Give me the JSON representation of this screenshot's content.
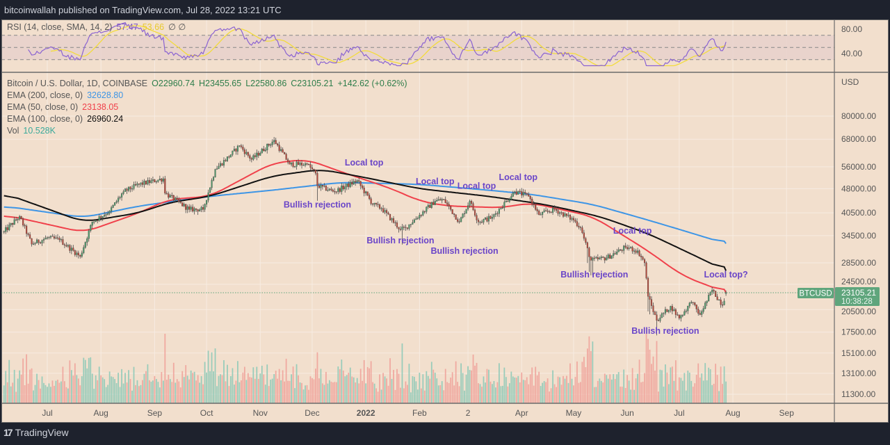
{
  "header": {
    "published": "bitcoinwallah published on TradingView.com, Jul 28, 2022 13:21 UTC"
  },
  "footer": {
    "brand": "TradingView",
    "logo_icon": "tradingview-logo-icon"
  },
  "legend": {
    "rsi": {
      "label": "RSI (14, close, SMA, 14, 2)",
      "value": "57.47",
      "sma_value": "53.66",
      "extra": "∅ ∅"
    },
    "symbol": {
      "label": "Bitcoin / U.S. Dollar, 1D, COINBASE",
      "open": "O22960.74",
      "high": "H23455.65",
      "low": "L22580.86",
      "close": "C23105.21",
      "change": "+142.62 (+0.62%)"
    },
    "ema200": {
      "label": "EMA (200, close, 0)",
      "value": "32628.80"
    },
    "ema50": {
      "label": "EMA (50, close, 0)",
      "value": "23138.05"
    },
    "ema100": {
      "label": "EMA (100, close, 0)",
      "value": "26960.24"
    },
    "vol": {
      "label": "Vol",
      "value": "10.528K"
    }
  },
  "price_axis": {
    "currency": "USD",
    "ticks": [
      "80000.00",
      "68000.00",
      "56000.00",
      "48000.00",
      "40500.00",
      "34500.00",
      "28500.00",
      "24500.00",
      "20500.00",
      "17500.00",
      "15100.00",
      "13100.00",
      "11300.00"
    ]
  },
  "rsi_axis": {
    "ticks": [
      "80.00",
      "40.00"
    ]
  },
  "last_price": {
    "symbol": "BTCUSD",
    "price": "23105.21",
    "countdown": "10:38:28"
  },
  "colors": {
    "bg": "#f2dfcd",
    "up": "#4f9a6c",
    "down": "#b8493c",
    "ema200": "#3d95e6",
    "ema50": "#f0414b",
    "ema100": "#111111",
    "rsi": "#8a63d2",
    "rsi_sma": "#f3dc3c",
    "annotation": "#6a45c8",
    "last": "#5fa57c"
  },
  "chart_data": {
    "type": "candlestick",
    "title": "Bitcoin / U.S. Dollar, 1D, COINBASE",
    "scale": "log",
    "ylim": [
      11300,
      80000
    ],
    "x_ticks": [
      {
        "date": "2021-07-01",
        "label": "Jul"
      },
      {
        "date": "2021-08-01",
        "label": "Aug"
      },
      {
        "date": "2021-09-01",
        "label": "Sep"
      },
      {
        "date": "2021-10-01",
        "label": "Oct"
      },
      {
        "date": "2021-11-01",
        "label": "Nov"
      },
      {
        "date": "2021-12-01",
        "label": "Dec"
      },
      {
        "date": "2022-01-01",
        "label": "2022",
        "bold": true
      },
      {
        "date": "2022-02-01",
        "label": "Feb"
      },
      {
        "date": "2022-03-01",
        "label": "2"
      },
      {
        "date": "2022-04-01",
        "label": "Apr"
      },
      {
        "date": "2022-05-01",
        "label": "May"
      },
      {
        "date": "2022-06-01",
        "label": "Jun"
      },
      {
        "date": "2022-07-01",
        "label": "Jul"
      },
      {
        "date": "2022-08-01",
        "label": "Aug"
      },
      {
        "date": "2022-09-01",
        "label": "Sep"
      }
    ],
    "close_keypoints": [
      [
        "2021-06-06",
        35500
      ],
      [
        "2021-06-15",
        39500
      ],
      [
        "2021-06-22",
        32500
      ],
      [
        "2021-07-01",
        34000
      ],
      [
        "2021-07-08",
        33500
      ],
      [
        "2021-07-20",
        29800
      ],
      [
        "2021-07-27",
        38000
      ],
      [
        "2021-08-06",
        41000
      ],
      [
        "2021-08-14",
        47000
      ],
      [
        "2021-08-23",
        49500
      ],
      [
        "2021-09-06",
        51500
      ],
      [
        "2021-09-07",
        46500
      ],
      [
        "2021-09-21",
        41500
      ],
      [
        "2021-09-29",
        41500
      ],
      [
        "2021-10-06",
        55000
      ],
      [
        "2021-10-15",
        61000
      ],
      [
        "2021-10-20",
        65000
      ],
      [
        "2021-10-27",
        59000
      ],
      [
        "2021-11-09",
        67500
      ],
      [
        "2021-11-18",
        57000
      ],
      [
        "2021-11-28",
        57000
      ],
      [
        "2021-12-03",
        53500
      ],
      [
        "2021-12-04",
        49000
      ],
      [
        "2021-12-14",
        47000
      ],
      [
        "2021-12-27",
        50800
      ],
      [
        "2022-01-05",
        43000
      ],
      [
        "2022-01-10",
        41800
      ],
      [
        "2022-01-21",
        36000
      ],
      [
        "2022-01-24",
        36500
      ],
      [
        "2022-02-10",
        44000
      ],
      [
        "2022-02-15",
        44500
      ],
      [
        "2022-02-24",
        38000
      ],
      [
        "2022-03-02",
        44000
      ],
      [
        "2022-03-07",
        38000
      ],
      [
        "2022-03-15",
        39300
      ],
      [
        "2022-03-28",
        47000
      ],
      [
        "2022-04-05",
        45500
      ],
      [
        "2022-04-11",
        40000
      ],
      [
        "2022-04-20",
        41500
      ],
      [
        "2022-05-01",
        38500
      ],
      [
        "2022-05-05",
        36500
      ],
      [
        "2022-05-11",
        29000
      ],
      [
        "2022-05-20",
        29500
      ],
      [
        "2022-05-31",
        31800
      ],
      [
        "2022-06-07",
        31000
      ],
      [
        "2022-06-11",
        28500
      ],
      [
        "2022-06-13",
        22500
      ],
      [
        "2022-06-18",
        19000
      ],
      [
        "2022-06-26",
        21000
      ],
      [
        "2022-07-01",
        19300
      ],
      [
        "2022-07-08",
        21600
      ],
      [
        "2022-07-13",
        19800
      ],
      [
        "2022-07-20",
        23500
      ],
      [
        "2022-07-26",
        21200
      ],
      [
        "2022-07-28",
        23105.21
      ]
    ],
    "last_candle": {
      "open": 22960.74,
      "high": 23455.65,
      "low": 22580.86,
      "close": 23105.21
    },
    "series": [
      {
        "name": "EMA (200, close, 0)",
        "color": "#3d95e6",
        "points": [
          [
            "2021-06-06",
            42500
          ],
          [
            "2021-07-22",
            39200
          ],
          [
            "2021-08-23",
            42500
          ],
          [
            "2021-10-03",
            45500
          ],
          [
            "2021-11-08",
            47500
          ],
          [
            "2021-12-18",
            50200
          ],
          [
            "2022-02-01",
            49500
          ],
          [
            "2022-03-13",
            47500
          ],
          [
            "2022-04-06",
            46200
          ],
          [
            "2022-05-12",
            43000
          ],
          [
            "2022-06-13",
            38500
          ],
          [
            "2022-07-03",
            35800
          ],
          [
            "2022-07-28",
            32628.8
          ]
        ]
      },
      {
        "name": "EMA (50, close, 0)",
        "color": "#f0414b",
        "points": [
          [
            "2021-06-06",
            40000
          ],
          [
            "2021-07-22",
            35300
          ],
          [
            "2021-08-23",
            40500
          ],
          [
            "2021-09-09",
            44500
          ],
          [
            "2021-10-03",
            45500
          ],
          [
            "2021-11-08",
            57500
          ],
          [
            "2021-11-28",
            59000
          ],
          [
            "2021-12-18",
            54000
          ],
          [
            "2022-01-16",
            48000
          ],
          [
            "2022-02-01",
            44000
          ],
          [
            "2022-02-17",
            42500
          ],
          [
            "2022-03-21",
            42000
          ],
          [
            "2022-04-06",
            43500
          ],
          [
            "2022-05-12",
            39500
          ],
          [
            "2022-06-13",
            31000
          ],
          [
            "2022-07-03",
            26000
          ],
          [
            "2022-07-28",
            23138.05
          ]
        ]
      },
      {
        "name": "EMA (100, close, 0)",
        "color": "#111111",
        "points": [
          [
            "2021-06-06",
            46500
          ],
          [
            "2021-07-22",
            38000
          ],
          [
            "2021-08-23",
            40500
          ],
          [
            "2021-09-09",
            43500
          ],
          [
            "2021-10-03",
            45500
          ],
          [
            "2021-11-08",
            52500
          ],
          [
            "2021-12-06",
            55000
          ],
          [
            "2021-12-31",
            52000
          ],
          [
            "2022-02-01",
            48000
          ],
          [
            "2022-03-13",
            45500
          ],
          [
            "2022-04-14",
            43000
          ],
          [
            "2022-05-16",
            39500
          ],
          [
            "2022-06-13",
            35000
          ],
          [
            "2022-07-07",
            30500
          ],
          [
            "2022-07-28",
            26960.24
          ]
        ]
      }
    ],
    "volume_spikes": [
      "2021-12-04",
      "2022-01-22",
      "2022-05-09",
      "2022-05-10",
      "2022-05-11",
      "2022-05-12",
      "2022-06-13",
      "2022-06-14",
      "2022-06-18"
    ],
    "annotations": [
      {
        "text": "Local top",
        "date": "2021-12-31",
        "price": 56500
      },
      {
        "text": "Local top",
        "date": "2022-02-10",
        "price": 49500
      },
      {
        "text": "Local top",
        "date": "2022-03-06",
        "price": 48000
      },
      {
        "text": "Local top",
        "date": "2022-03-30",
        "price": 51000
      },
      {
        "text": "Local top",
        "date": "2022-06-04",
        "price": 35000
      },
      {
        "text": "Local top?",
        "date": "2022-07-28",
        "price": 25700
      },
      {
        "text": "Bullish rejection",
        "date": "2021-12-04",
        "price": 42000
      },
      {
        "text": "Bullish rejection",
        "date": "2022-01-21",
        "price": 32700
      },
      {
        "text": "Bullish rejection",
        "date": "2022-02-27",
        "price": 33800
      },
      {
        "text": "Bullish rejection",
        "date": "2022-05-13",
        "price": 25700
      },
      {
        "text": "Bullish rejection",
        "date": "2022-06-23",
        "price": 17300
      }
    ],
    "rsi": {
      "length": 14,
      "sma": 14,
      "bands": [
        70,
        50,
        30
      ],
      "ylim": [
        20,
        95
      ]
    }
  }
}
